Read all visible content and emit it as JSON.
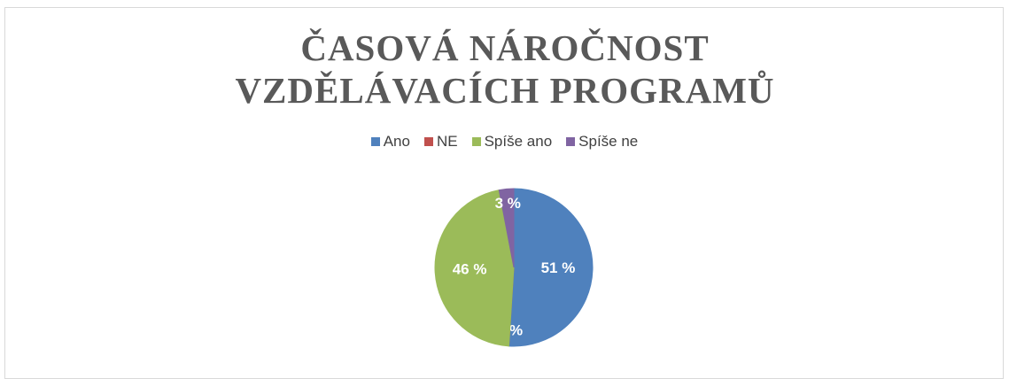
{
  "chart_data": {
    "type": "pie",
    "title": "ČASOVÁ NÁROČNOST VZDĚLÁVACÍCH PROGRAMŮ",
    "categories": [
      "Ano",
      "NE",
      "Spíše ano",
      "Spíše ne"
    ],
    "values": [
      51,
      0,
      46,
      3
    ],
    "value_labels": [
      "51 %",
      "0 %",
      "46 %",
      "3 %"
    ],
    "colors": [
      "#4f81bd",
      "#c0504d",
      "#9bbb59",
      "#8064a2"
    ],
    "legend": "top"
  }
}
